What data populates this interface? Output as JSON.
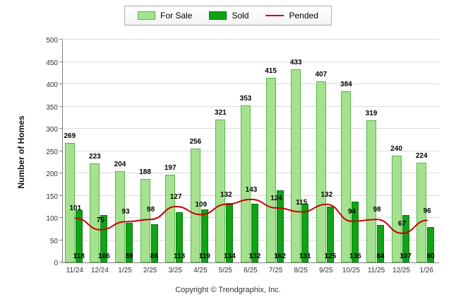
{
  "footer": {
    "text": "Copyright © Trendgraphix, Inc."
  },
  "chart_data": {
    "type": "bar",
    "subtype": "grouped-bars-with-line-overlay",
    "title": "",
    "xlabel": "",
    "ylabel": "Number of Homes",
    "ylim": [
      0,
      500
    ],
    "ytick_interval": 50,
    "grid": true,
    "legend_position": "top",
    "categories": [
      "11/24",
      "12/24",
      "1/25",
      "2/25",
      "3/25",
      "4/25",
      "5/25",
      "6/25",
      "7/25",
      "8/25",
      "9/25",
      "10/25",
      "11/25",
      "12/25",
      "1/26"
    ],
    "series": [
      {
        "name": "For Sale",
        "type": "bar",
        "color": "#A5E18F",
        "border_color": "#56B948",
        "values": [
          269,
          223,
          204,
          188,
          197,
          256,
          321,
          353,
          415,
          433,
          407,
          384,
          319,
          240,
          224
        ]
      },
      {
        "name": "Sold",
        "type": "bar",
        "color": "#10A315",
        "border_color": "#0B7A10",
        "values": [
          118,
          106,
          89,
          86,
          113,
          119,
          134,
          132,
          162,
          131,
          125,
          136,
          84,
          107,
          80
        ]
      },
      {
        "name": "Pended",
        "type": "line",
        "color": "#C80000",
        "values": [
          101,
          75,
          93,
          98,
          127,
          109,
          132,
          143,
          124,
          115,
          132,
          94,
          98,
          67,
          96
        ]
      }
    ]
  }
}
